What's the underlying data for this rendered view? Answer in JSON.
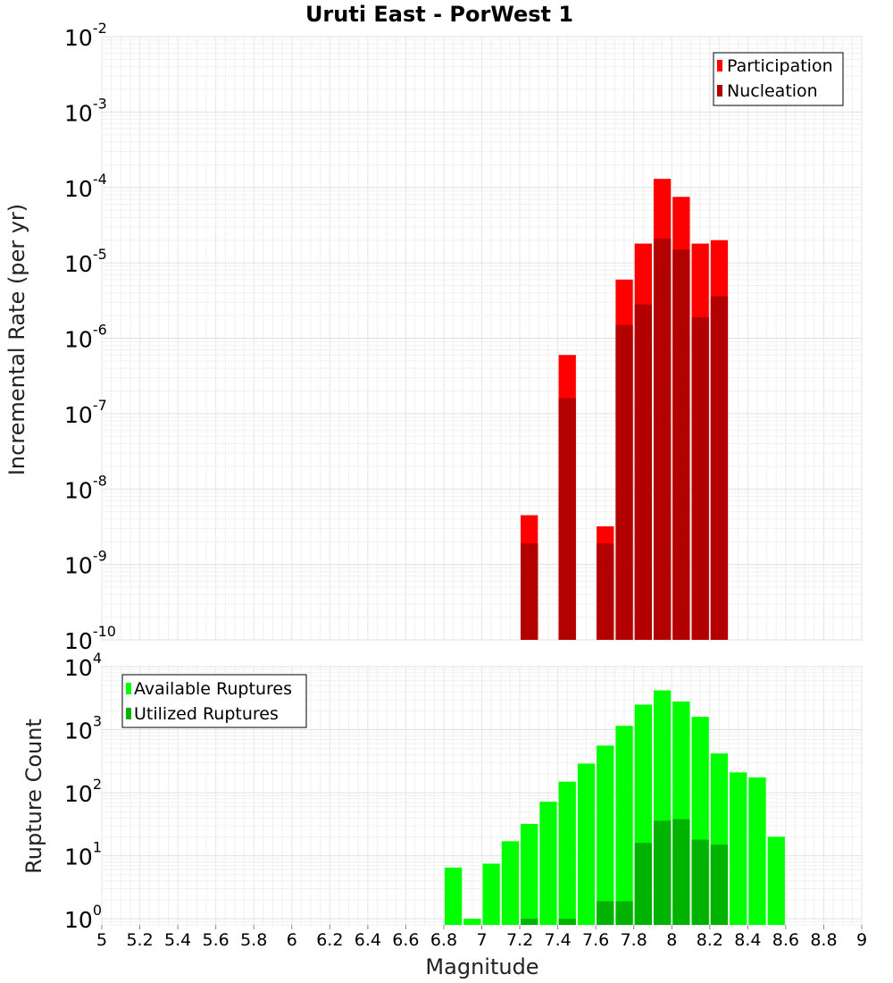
{
  "chart_data": [
    {
      "type": "bar",
      "title": "Uruti East - PorWest 1",
      "xlabel": "",
      "ylabel": "Incremental Rate (per yr)",
      "yscale": "log",
      "ylim": [
        1e-10,
        0.01
      ],
      "xlim": [
        5,
        9
      ],
      "grid": true,
      "legend_position": "top-right",
      "series": [
        {
          "name": "Participation",
          "color": "#ff0000",
          "points": [
            [
              7.25,
              4.5e-09
            ],
            [
              7.45,
              6e-07
            ],
            [
              7.65,
              3.2e-09
            ],
            [
              7.75,
              6e-06
            ],
            [
              7.85,
              1.8e-05
            ],
            [
              7.95,
              0.00013
            ],
            [
              8.05,
              7.5e-05
            ],
            [
              8.15,
              1.8e-05
            ],
            [
              8.25,
              2e-05
            ]
          ]
        },
        {
          "name": "Nucleation",
          "color": "#b30000",
          "points": [
            [
              7.25,
              1.9e-09
            ],
            [
              7.45,
              1.6e-07
            ],
            [
              7.65,
              1.9e-09
            ],
            [
              7.75,
              1.5e-06
            ],
            [
              7.85,
              2.8e-06
            ],
            [
              7.95,
              2.1e-05
            ],
            [
              8.05,
              1.5e-05
            ],
            [
              8.15,
              1.9e-06
            ],
            [
              8.25,
              3.6e-06
            ]
          ]
        }
      ]
    },
    {
      "type": "bar",
      "title": "",
      "xlabel": "Magnitude",
      "ylabel": "Rupture Count",
      "yscale": "log",
      "ylim": [
        0.8,
        10000
      ],
      "xlim": [
        5,
        9
      ],
      "grid": true,
      "legend_position": "top-left",
      "x_ticks": [
        5,
        5.2,
        5.4,
        5.6,
        5.8,
        6,
        6.2,
        6.4,
        6.6,
        6.8,
        7,
        7.2,
        7.4,
        7.6,
        7.8,
        8,
        8.2,
        8.4,
        8.6,
        8.8,
        9
      ],
      "series": [
        {
          "name": "Available Ruptures",
          "color": "#00ff00",
          "points": [
            [
              6.85,
              6.5
            ],
            [
              6.95,
              1
            ],
            [
              7.05,
              7.5
            ],
            [
              7.15,
              17
            ],
            [
              7.25,
              32
            ],
            [
              7.35,
              72
            ],
            [
              7.45,
              150
            ],
            [
              7.55,
              290
            ],
            [
              7.65,
              560
            ],
            [
              7.75,
              1150
            ],
            [
              7.85,
              2500
            ],
            [
              7.95,
              4200
            ],
            [
              8.05,
              2800
            ],
            [
              8.15,
              1600
            ],
            [
              8.25,
              420
            ],
            [
              8.35,
              210
            ],
            [
              8.45,
              175
            ],
            [
              8.55,
              20
            ]
          ]
        },
        {
          "name": "Utilized Ruptures",
          "color": "#00b300",
          "points": [
            [
              7.25,
              1
            ],
            [
              7.45,
              1
            ],
            [
              7.65,
              1.9
            ],
            [
              7.75,
              1.9
            ],
            [
              7.85,
              16
            ],
            [
              7.95,
              36
            ],
            [
              8.05,
              38
            ],
            [
              8.15,
              18
            ],
            [
              8.25,
              15
            ]
          ]
        }
      ]
    }
  ]
}
